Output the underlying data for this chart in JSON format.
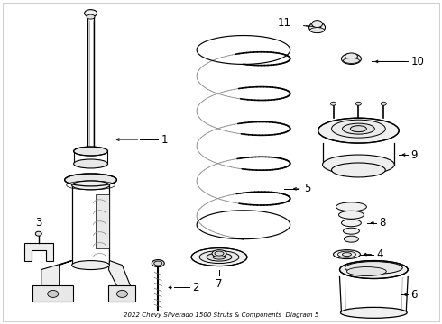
{
  "title": "2022 Chevy Silverado 1500 Struts & Components  Diagram 5",
  "bg_color": "#ffffff",
  "line_color": "#000000",
  "label_color": "#000000",
  "fig_width": 4.9,
  "fig_height": 3.6,
  "dpi": 100
}
